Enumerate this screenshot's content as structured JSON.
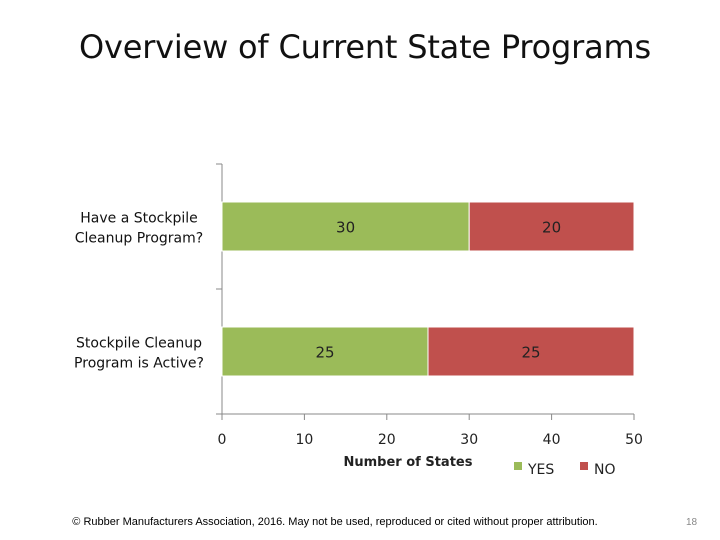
{
  "title": "Overview of Current State Programs",
  "chart_data": {
    "type": "bar",
    "orientation": "horizontal",
    "stacked": true,
    "categories": [
      "Have a Stockpile Cleanup Program?",
      "Stockpile Cleanup Program is Active?"
    ],
    "category_lines": [
      [
        "Have a Stockpile",
        "Cleanup Program?"
      ],
      [
        "Stockpile Cleanup",
        "Program is Active?"
      ]
    ],
    "series": [
      {
        "name": "YES",
        "values": [
          30,
          25
        ],
        "color": "#9BBB59"
      },
      {
        "name": "NO",
        "values": [
          20,
          25
        ],
        "color": "#C0504D"
      }
    ],
    "xlabel": "Number of States",
    "ylabel": "",
    "xlim": [
      0,
      50
    ],
    "xticks": [
      "0",
      "10",
      "20",
      "30",
      "40",
      "50"
    ],
    "grid": false,
    "legend_position": "bottom-right",
    "data_labels": true
  },
  "footer": "© Rubber Manufacturers Association, 2016.  May not be used, reproduced or cited without proper attribution.",
  "page_number": "18"
}
